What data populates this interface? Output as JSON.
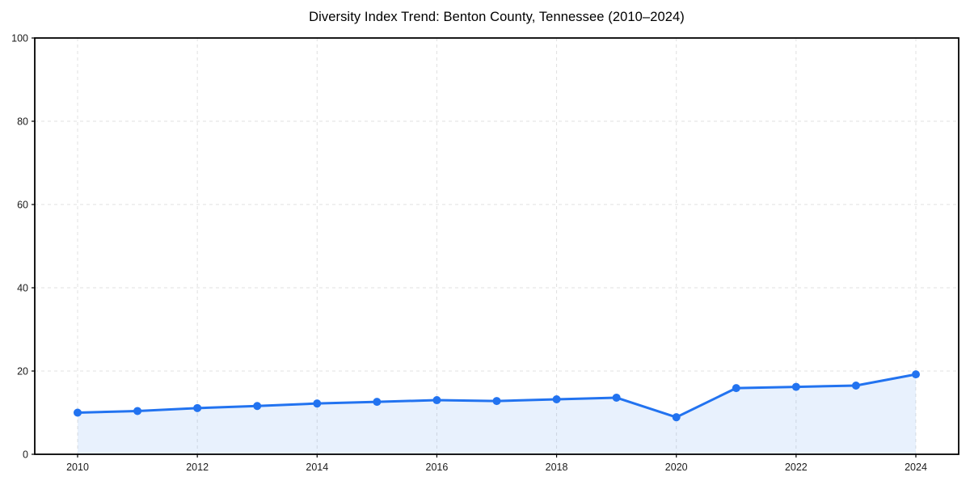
{
  "page": {
    "background": "#ffffff"
  },
  "chart_data": {
    "type": "line",
    "title": "Diversity Index Trend: Benton County, Tennessee (2010–2024)",
    "xlabel": "",
    "ylabel": "",
    "x": [
      2010,
      2011,
      2012,
      2013,
      2014,
      2015,
      2016,
      2017,
      2018,
      2019,
      2020,
      2021,
      2022,
      2023,
      2024
    ],
    "series": [
      {
        "name": "Diversity Index",
        "values": [
          10.0,
          10.4,
          11.1,
          11.6,
          12.2,
          12.6,
          13.0,
          12.8,
          13.2,
          13.6,
          8.9,
          15.9,
          16.2,
          16.5,
          19.2
        ]
      }
    ],
    "ylim": [
      0,
      100
    ],
    "yticks": [
      0,
      20,
      40,
      60,
      80,
      100
    ],
    "xticks": [
      2010,
      2012,
      2014,
      2016,
      2018,
      2020,
      2022,
      2024
    ],
    "grid": true,
    "grid_style": "dashed",
    "legend": false,
    "area_fill_under_line": true,
    "marker": "circle",
    "style": {
      "line_color": "#2273f0",
      "marker_color": "#2273f0",
      "area_fill_color": "rgba(34,115,240,0.10)",
      "grid_color": "#e0e0e0",
      "axis_border_color": "#000000",
      "tick_label_color": "#1a1a1a",
      "title_color": "#000000"
    }
  }
}
